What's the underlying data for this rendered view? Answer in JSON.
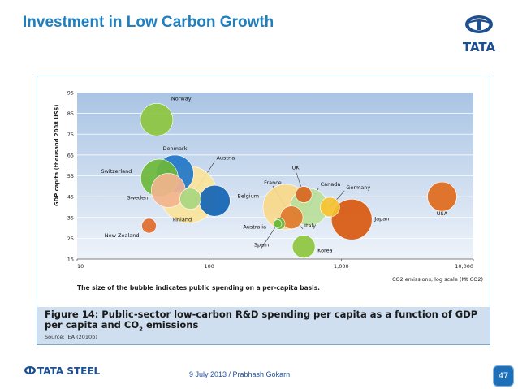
{
  "slide": {
    "title": "Investment in Low Carbon Growth",
    "logo_text": "TATA",
    "footer_brand": "TATA STEEL",
    "footer_text": "9 July 2013 / Prabhash Gokarn",
    "page_number": "47"
  },
  "figure": {
    "caption_prefix": "Figure 14:",
    "caption": "Figure 14: Public-sector low-carbon R&D spending per capita as a function of GDP per capita and CO2 emissions",
    "source": "Source: IEA (2010b)"
  },
  "chart_data": {
    "type": "scatter",
    "subtype": "bubble",
    "xscale": "log",
    "xlim": [
      10,
      10000
    ],
    "ylim": [
      15,
      95
    ],
    "xticks": [
      10,
      100,
      1000,
      10000
    ],
    "xtick_labels": [
      "10",
      "100",
      "1,000",
      "10,000"
    ],
    "yticks": [
      15,
      25,
      35,
      45,
      55,
      65,
      75,
      85,
      95
    ],
    "ylabel": "GDP capita (thousand 2008 US$)",
    "xlabel": "CO2 emissions, log scale (Mt CO2)",
    "note": "The size of the bubble indicates public spending on a per-capita basis.",
    "grid": true,
    "points": [
      {
        "label": "Norway",
        "x": 40,
        "y": 82,
        "size": 20,
        "color": "#8dc63f"
      },
      {
        "label": "Denmark",
        "x": 55,
        "y": 56,
        "size": 23,
        "color": "#1f77c9"
      },
      {
        "label": "Switzerland",
        "x": 42,
        "y": 54,
        "size": 23,
        "color": "#6cb83a"
      },
      {
        "label": "Sweden",
        "x": 49,
        "y": 48,
        "size": 21,
        "color": "#f2b48e"
      },
      {
        "label": "Finland",
        "x": 70,
        "y": 46,
        "size": 35,
        "color": "#fbe49a"
      },
      {
        "label": "Austria",
        "x": 72,
        "y": 44,
        "size": 13,
        "color": "#a9d77f"
      },
      {
        "label": "Belgium",
        "x": 110,
        "y": 43,
        "size": 19,
        "color": "#1464b4"
      },
      {
        "label": "New Zealand",
        "x": 35,
        "y": 31,
        "size": 9,
        "color": "#e06a2c"
      },
      {
        "label": "France",
        "x": 380,
        "y": 40,
        "size": 28,
        "color": "#f9d98a"
      },
      {
        "label": "UK",
        "x": 520,
        "y": 46,
        "size": 10,
        "color": "#d86620"
      },
      {
        "label": "Canada",
        "x": 570,
        "y": 40,
        "size": 23,
        "color": "#b8df9a"
      },
      {
        "label": "Germany",
        "x": 820,
        "y": 40,
        "size": 12,
        "color": "#f7c230"
      },
      {
        "label": "Japan",
        "x": 1200,
        "y": 34,
        "size": 25,
        "color": "#d9590f"
      },
      {
        "label": "USA",
        "x": 5800,
        "y": 45,
        "size": 18,
        "color": "#e06a1c"
      },
      {
        "label": "Australia",
        "x": 340,
        "y": 32,
        "size": 7,
        "color": "#6cb83a"
      },
      {
        "label": "Italy",
        "x": 420,
        "y": 35,
        "size": 14,
        "color": "#e0782c"
      },
      {
        "label": "Spain",
        "x": 330,
        "y": 32,
        "size": 5,
        "color": "#6cb83a"
      },
      {
        "label": "Korea",
        "x": 520,
        "y": 21,
        "size": 14,
        "color": "#8dc63f"
      }
    ]
  },
  "colors": {
    "title_blue": "#1f7fbf",
    "plot_band_top": "#a9c4e4",
    "plot_band_bottom": "#eef3fa",
    "caption_band": "#cfdff0",
    "badge": "#1d6fb8"
  }
}
